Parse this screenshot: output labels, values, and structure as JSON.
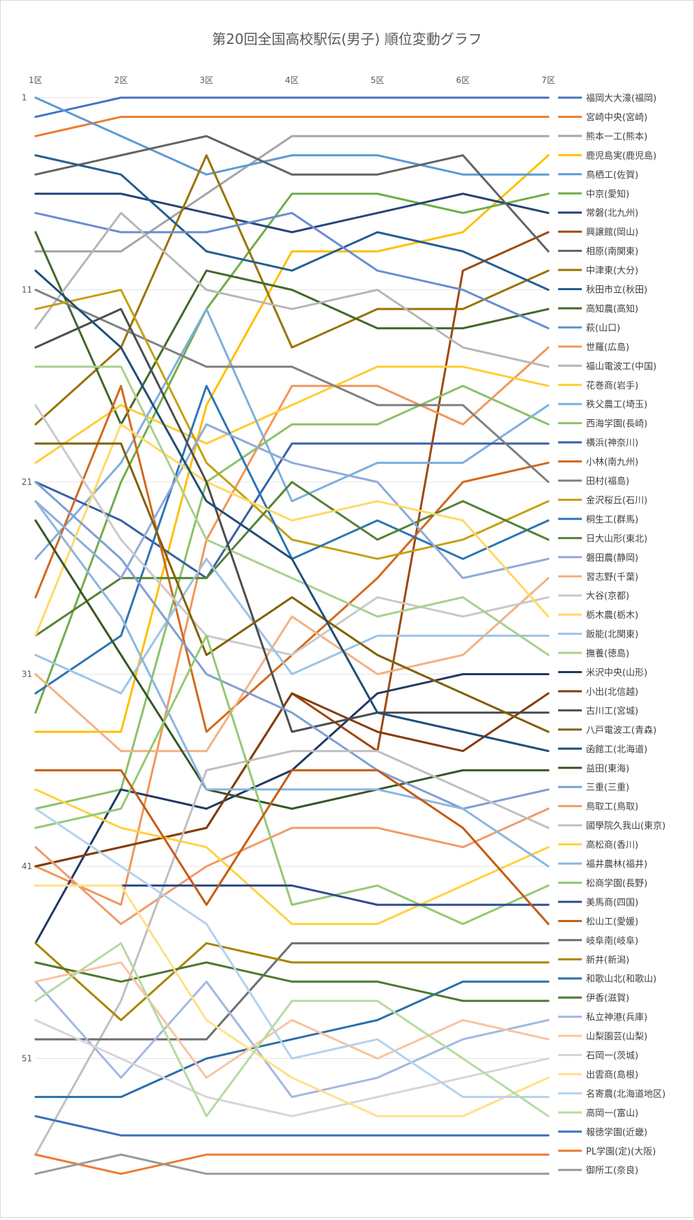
{
  "chart_data": {
    "type": "line",
    "title": "第20回全国高校駅伝(男子) 順位変動グラフ",
    "categories": [
      "1区",
      "2区",
      "3区",
      "4区",
      "5区",
      "6区",
      "7区"
    ],
    "y_ticks": [
      "1",
      "11",
      "21",
      "31",
      "41",
      "51"
    ],
    "y_range": [
      1,
      58
    ],
    "y_inverted": true,
    "grid": true,
    "legend_position": "right",
    "series": [
      {
        "name": "福岡大大濠(福岡)",
        "color": "#4472C4",
        "values": [
          2,
          1,
          1,
          1,
          1,
          1,
          1
        ]
      },
      {
        "name": "宮崎中央(宮崎)",
        "color": "#ED7D31",
        "values": [
          3,
          2,
          2,
          2,
          2,
          2,
          2
        ]
      },
      {
        "name": "熊本一工(熊本)",
        "color": "#A5A5A5",
        "values": [
          9,
          9,
          6,
          3,
          3,
          3,
          3
        ]
      },
      {
        "name": "鹿児島実(鹿児島)",
        "color": "#FFC000",
        "values": [
          34,
          34,
          17,
          9,
          9,
          8,
          4
        ]
      },
      {
        "name": "鳥栖工(佐賀)",
        "color": "#5B9BD5",
        "values": [
          1,
          3,
          5,
          4,
          4,
          5,
          5
        ]
      },
      {
        "name": "中京(愛知)",
        "color": "#70AD47",
        "values": [
          33,
          21,
          12,
          6,
          6,
          7,
          6
        ]
      },
      {
        "name": "常磐(北九州)",
        "color": "#264478",
        "values": [
          6,
          6,
          7,
          8,
          7,
          6,
          7
        ]
      },
      {
        "name": "興譲館(岡山)",
        "color": "#9E480E",
        "values": [
          41,
          40,
          39,
          32,
          35,
          10,
          8
        ]
      },
      {
        "name": "相原(南関東)",
        "color": "#636363",
        "values": [
          5,
          4,
          3,
          5,
          5,
          4,
          9
        ]
      },
      {
        "name": "中津東(大分)",
        "color": "#997300",
        "values": [
          18,
          14,
          4,
          14,
          12,
          12,
          10
        ]
      },
      {
        "name": "秋田市立(秋田)",
        "color": "#255E91",
        "values": [
          4,
          5,
          9,
          10,
          8,
          9,
          11
        ]
      },
      {
        "name": "高知農(高知)",
        "color": "#43682B",
        "values": [
          8,
          18,
          10,
          11,
          13,
          13,
          12
        ]
      },
      {
        "name": "萩(山口)",
        "color": "#698ED0",
        "values": [
          7,
          8,
          8,
          7,
          10,
          11,
          13
        ]
      },
      {
        "name": "世羅(広島)",
        "color": "#F1975A",
        "values": [
          41,
          43,
          24,
          16,
          16,
          18,
          14
        ]
      },
      {
        "name": "福山電波工(中国)",
        "color": "#B7B7B7",
        "values": [
          13,
          7,
          11,
          12,
          11,
          14,
          15
        ]
      },
      {
        "name": "花巻商(岩手)",
        "color": "#FFCD33",
        "values": [
          20,
          17,
          19,
          17,
          15,
          15,
          16
        ]
      },
      {
        "name": "秩父農工(埼玉)",
        "color": "#7CAFDD",
        "values": [
          25,
          20,
          12,
          22,
          20,
          20,
          17
        ]
      },
      {
        "name": "西海学園(長崎)",
        "color": "#8CC168",
        "values": [
          38,
          37,
          21,
          18,
          18,
          16,
          18
        ]
      },
      {
        "name": "横浜(神奈川)",
        "color": "#3A5FA6",
        "values": [
          21,
          23,
          26,
          19,
          19,
          19,
          19
        ]
      },
      {
        "name": "小林(南九州)",
        "color": "#D2691E",
        "values": [
          27,
          16,
          34,
          30,
          26,
          21,
          20
        ]
      },
      {
        "name": "田村(福島)",
        "color": "#808080",
        "values": [
          11,
          13,
          15,
          15,
          17,
          17,
          21
        ]
      },
      {
        "name": "金沢桜丘(石川)",
        "color": "#C5A011",
        "values": [
          12,
          11,
          20,
          24,
          25,
          24,
          22
        ]
      },
      {
        "name": "桐生工(群馬)",
        "color": "#2E75B6",
        "values": [
          32,
          29,
          16,
          25,
          23,
          25,
          23
        ]
      },
      {
        "name": "日大山形(東北)",
        "color": "#548235",
        "values": [
          29,
          26,
          26,
          21,
          24,
          22,
          24
        ]
      },
      {
        "name": "磐田農(静岡)",
        "color": "#8FAADC",
        "values": [
          22,
          26,
          18,
          20,
          21,
          26,
          25
        ]
      },
      {
        "name": "習志野(千葉)",
        "color": "#F4B183",
        "values": [
          31,
          35,
          35,
          28,
          31,
          30,
          26
        ]
      },
      {
        "name": "大谷(京都)",
        "color": "#C9C9C9",
        "values": [
          17,
          24,
          29,
          30,
          27,
          28,
          27
        ]
      },
      {
        "name": "栃木農(栃木)",
        "color": "#FFD966",
        "values": [
          29,
          18,
          21,
          23,
          22,
          23,
          28
        ]
      },
      {
        "name": "飯能(北関東)",
        "color": "#9DC3E6",
        "values": [
          30,
          32,
          25,
          31,
          29,
          29,
          29
        ]
      },
      {
        "name": "撫養(徳島)",
        "color": "#A9D18E",
        "values": [
          15,
          15,
          24,
          26,
          28,
          27,
          30
        ]
      },
      {
        "name": "米沢中央(山形)",
        "color": "#203864",
        "values": [
          45,
          37,
          38,
          36,
          32,
          31,
          31
        ]
      },
      {
        "name": "小出(北信越)",
        "color": "#843C0C",
        "values": [
          41,
          40,
          39,
          32,
          34,
          35,
          32
        ]
      },
      {
        "name": "古川工(宮城)",
        "color": "#4D4D4D",
        "values": [
          14,
          12,
          21,
          34,
          33,
          33,
          33
        ]
      },
      {
        "name": "八戸電波工(青森)",
        "color": "#7F6000",
        "values": [
          19,
          19,
          30,
          27,
          30,
          32,
          34
        ]
      },
      {
        "name": "函館工(北海道)",
        "color": "#1F4E79",
        "values": [
          10,
          14,
          22,
          25,
          33,
          34,
          35
        ]
      },
      {
        "name": "益田(東海)",
        "color": "#375623",
        "values": [
          23,
          30,
          37,
          38,
          37,
          36,
          36
        ]
      },
      {
        "name": "三重(三重)",
        "color": "#7F9FD4",
        "values": [
          21,
          25,
          31,
          33,
          36,
          38,
          37
        ]
      },
      {
        "name": "鳥取工(鳥取)",
        "color": "#F09B6B",
        "values": [
          40,
          44,
          41,
          39,
          39,
          40,
          38
        ]
      },
      {
        "name": "國學院久我山(東京)",
        "color": "#BFBFBF",
        "values": [
          56,
          48,
          36,
          35,
          35,
          37,
          39
        ]
      },
      {
        "name": "高松商(香川)",
        "color": "#FFD23F",
        "values": [
          37,
          39,
          40,
          44,
          44,
          42,
          40
        ]
      },
      {
        "name": "福井農林(福井)",
        "color": "#8AB6E0",
        "values": [
          22,
          28,
          37,
          37,
          37,
          38,
          41
        ]
      },
      {
        "name": "松商学園(長野)",
        "color": "#94C973",
        "values": [
          39,
          38,
          29,
          43,
          42,
          44,
          42
        ]
      },
      {
        "name": "美馬商(四国)",
        "color": "#2F4B8C",
        "values": [
          42,
          42,
          42,
          42,
          43,
          43,
          43
        ]
      },
      {
        "name": "松山工(愛媛)",
        "color": "#C55A11",
        "values": [
          36,
          36,
          43,
          36,
          36,
          39,
          44
        ]
      },
      {
        "name": "岐阜南(岐阜)",
        "color": "#6E6E6E",
        "values": [
          50,
          50,
          50,
          45,
          45,
          45,
          45
        ]
      },
      {
        "name": "新井(新潟)",
        "color": "#AA8400",
        "values": [
          45,
          49,
          45,
          46,
          46,
          46,
          46
        ]
      },
      {
        "name": "和歌山北(和歌山)",
        "color": "#2A6FAA",
        "values": [
          53,
          53,
          51,
          50,
          49,
          47,
          47
        ]
      },
      {
        "name": "伊香(滋賀)",
        "color": "#4A7A2E",
        "values": [
          46,
          47,
          46,
          47,
          47,
          48,
          48
        ]
      },
      {
        "name": "私立神港(兵庫)",
        "color": "#A3B8E0",
        "values": [
          47,
          52,
          47,
          53,
          52,
          50,
          49
        ]
      },
      {
        "name": "山梨園芸(山梨)",
        "color": "#F8C4A0",
        "values": [
          47,
          46,
          52,
          49,
          51,
          49,
          50
        ]
      },
      {
        "name": "石岡一(茨城)",
        "color": "#D6D6D6",
        "values": [
          49,
          51,
          53,
          54,
          53,
          52,
          51
        ]
      },
      {
        "name": "出雲商(島根)",
        "color": "#FFE08A",
        "values": [
          42,
          42,
          49,
          52,
          54,
          54,
          52
        ]
      },
      {
        "name": "名寄農(北海道地区)",
        "color": "#B4D2EE",
        "values": [
          38,
          41,
          44,
          51,
          50,
          53,
          53
        ]
      },
      {
        "name": "高岡一(富山)",
        "color": "#B6DBA0",
        "values": [
          48,
          45,
          54,
          48,
          48,
          51,
          54
        ]
      },
      {
        "name": "報徳学園(近畿)",
        "color": "#3F6FBF",
        "values": [
          54,
          55,
          55,
          55,
          55,
          55,
          55
        ]
      },
      {
        "name": "PL学園(定)(大阪)",
        "color": "#EE7A33",
        "values": [
          56,
          57,
          56,
          56,
          56,
          56,
          56
        ]
      },
      {
        "name": "御所工(奈良)",
        "color": "#9A9A9A",
        "values": [
          57,
          56,
          57,
          57,
          57,
          57,
          57
        ]
      }
    ]
  }
}
